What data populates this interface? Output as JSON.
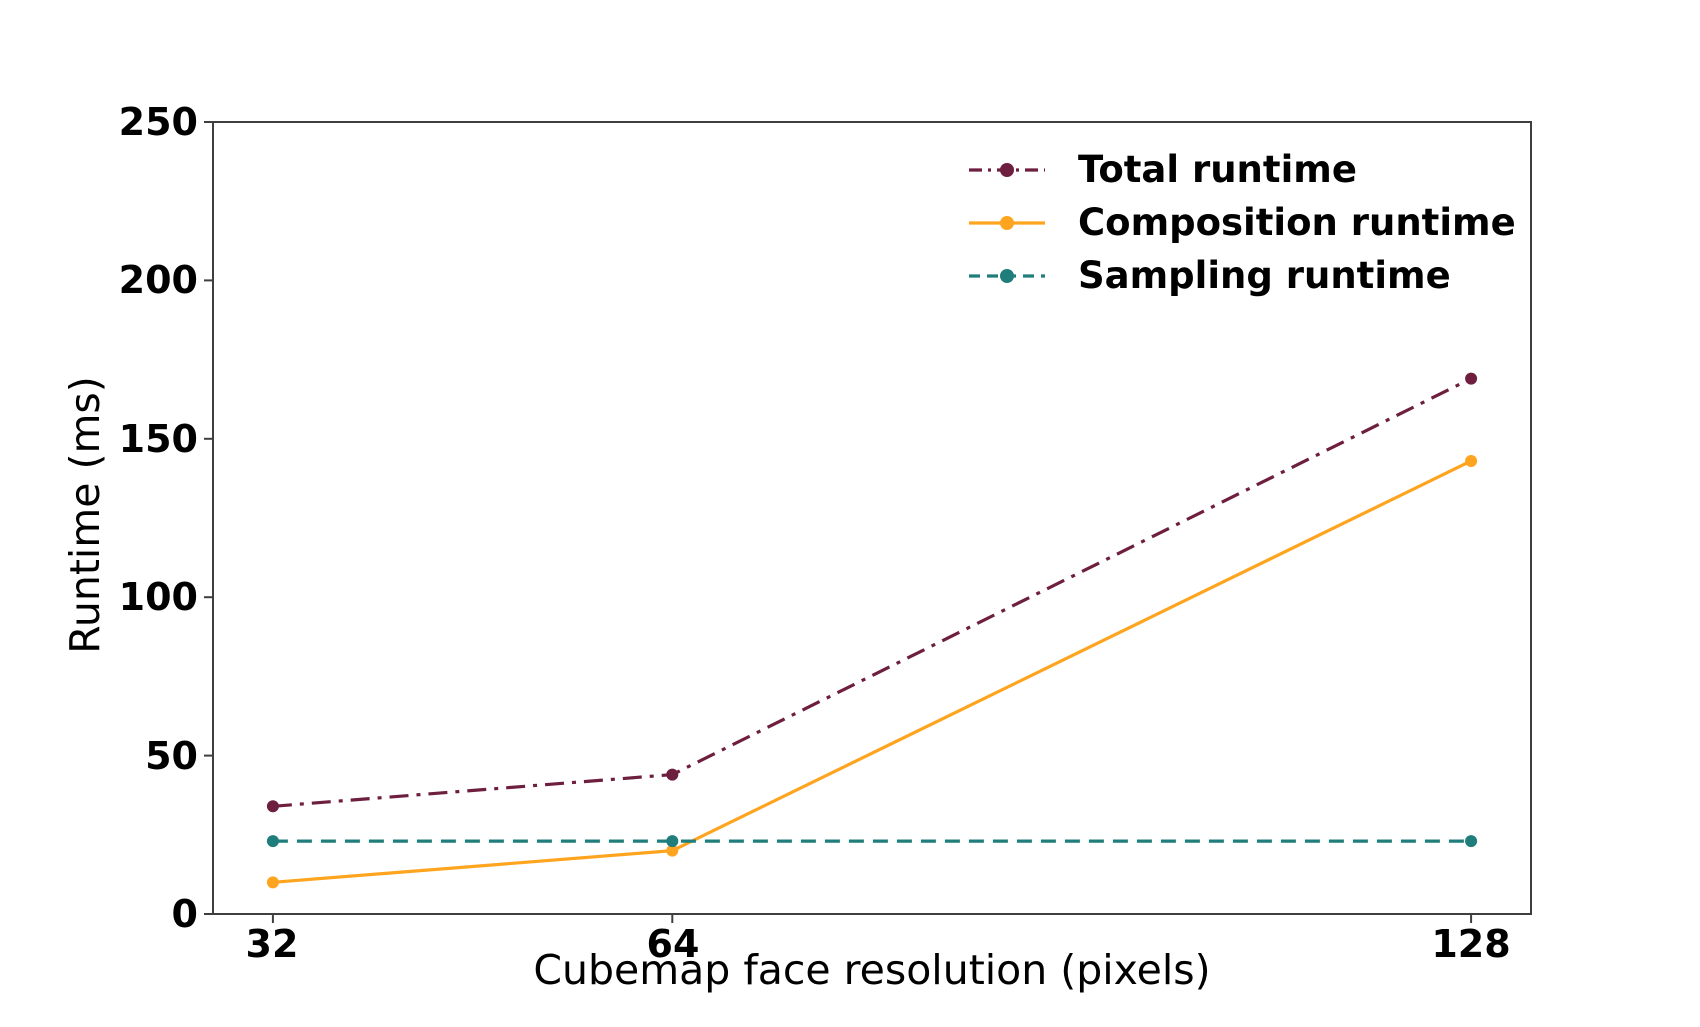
{
  "chart_data": {
    "type": "line",
    "title": "",
    "xlabel": "Cubemap face resolution (pixels)",
    "ylabel": "Runtime (ms)",
    "x": [
      32,
      64,
      128
    ],
    "xtick_labels": [
      "32",
      "64",
      "128"
    ],
    "yticks": [
      0,
      50,
      100,
      150,
      200,
      250
    ],
    "ytick_labels": [
      "0",
      "50",
      "100",
      "150",
      "200",
      "250"
    ],
    "xlim": [
      27.2,
      132.8
    ],
    "ylim": [
      0,
      250
    ],
    "grid": false,
    "legend_position": "upper right",
    "series": [
      {
        "name": "Total runtime",
        "values": [
          34,
          44,
          169
        ],
        "color": "#6e1e3e",
        "line_style": "dashdot",
        "marker": "circle"
      },
      {
        "name": "Composition runtime",
        "values": [
          10,
          20,
          143
        ],
        "color": "#ffa41e",
        "line_style": "solid",
        "marker": "circle"
      },
      {
        "name": "Sampling runtime",
        "values": [
          23,
          23,
          23
        ],
        "color": "#1f7e7b",
        "line_style": "dashed",
        "marker": "circle"
      }
    ]
  }
}
